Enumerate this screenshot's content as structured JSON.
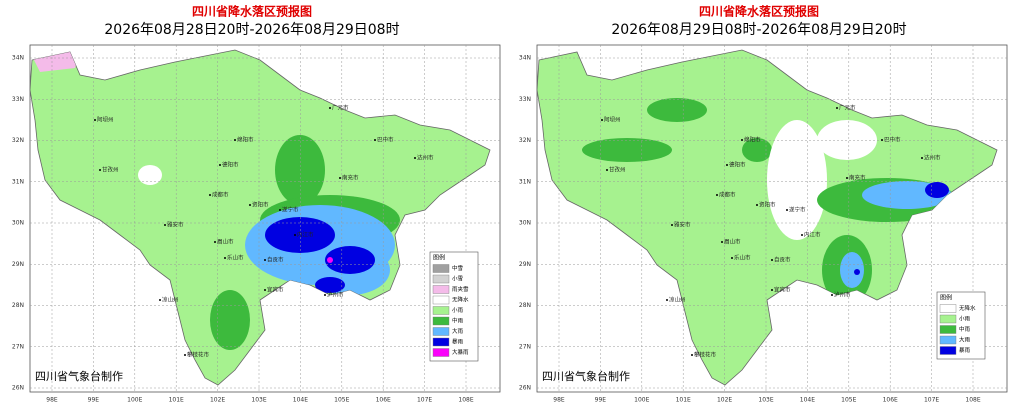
{
  "panels": [
    {
      "title": "四川省降水落区预报图",
      "subtitle": "2026年08月28日20时-2026年08月29日08时",
      "credit": "四川省气象台制作",
      "legend": {
        "title": "图例",
        "items": [
          {
            "label": "中雪",
            "color": "#a0a0a0"
          },
          {
            "label": "小雪",
            "color": "#d2d2d2"
          },
          {
            "label": "雨夹雪",
            "color": "#f4bbe9"
          },
          {
            "label": "无降水",
            "color": "#ffffff"
          },
          {
            "label": "小雨",
            "color": "#a6f28f"
          },
          {
            "label": "中雨",
            "color": "#3dba3d"
          },
          {
            "label": "大雨",
            "color": "#61b8ff"
          },
          {
            "label": "暴雨",
            "color": "#0000e1"
          },
          {
            "label": "大暴雨",
            "color": "#fa00fa"
          }
        ]
      }
    },
    {
      "title": "四川省降水落区预报图",
      "subtitle": "2026年08月29日08时-2026年08月29日20时",
      "credit": "四川省气象台制作",
      "legend": {
        "title": "图例",
        "items": [
          {
            "label": "无降水",
            "color": "#ffffff"
          },
          {
            "label": "小雨",
            "color": "#a6f28f"
          },
          {
            "label": "中雨",
            "color": "#3dba3d"
          },
          {
            "label": "大雨",
            "color": "#61b8ff"
          },
          {
            "label": "暴雨",
            "color": "#0000e1"
          }
        ]
      }
    }
  ],
  "lat_labels": [
    "34N",
    "33N",
    "32N",
    "31N",
    "30N",
    "29N",
    "28N",
    "27N",
    "26N"
  ],
  "lon_labels": [
    "98E",
    "99E",
    "100E",
    "101E",
    "102E",
    "103E",
    "104E",
    "105E",
    "106E",
    "107E",
    "108E"
  ],
  "cities": [
    "阿坝州",
    "绵阳市",
    "广元市",
    "巴中市",
    "达州市",
    "甘孜州",
    "德阳市",
    "南充市",
    "成都市",
    "遂宁市",
    "资阳市",
    "雅安市",
    "眉山市",
    "内江市",
    "乐山市",
    "自贡市",
    "宜宾市",
    "泸州市",
    "凉山州",
    "攀枝花市"
  ]
}
